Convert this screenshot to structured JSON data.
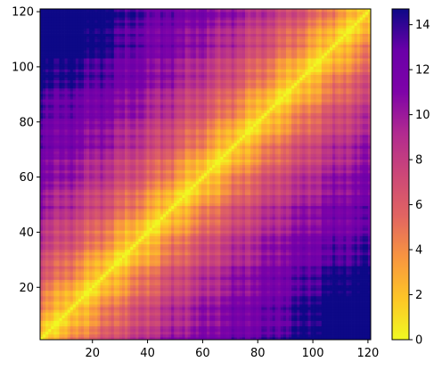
{
  "chart_data": {
    "type": "heatmap",
    "title": "",
    "xlabel": "",
    "ylabel": "",
    "n": 121,
    "xlim": [
      1,
      121
    ],
    "ylim": [
      1,
      121
    ],
    "x_ticks": [
      20,
      40,
      60,
      80,
      100,
      120
    ],
    "y_ticks": [
      20,
      40,
      60,
      80,
      100,
      120
    ],
    "x_tick_labels": [
      "20",
      "40",
      "60",
      "80",
      "100",
      "120"
    ],
    "y_tick_labels": [
      "20",
      "40",
      "60",
      "80",
      "100",
      "120"
    ],
    "symmetric": true,
    "diagonal_value": 0,
    "colormap": "plasma_r",
    "colorbar": {
      "range": [
        0,
        14.7
      ],
      "ticks": [
        0,
        2,
        4,
        6,
        8,
        10,
        12,
        14
      ],
      "tick_labels": [
        "0",
        "2",
        "4",
        "6",
        "8",
        "10",
        "12",
        "14"
      ],
      "stops": [
        "#f0f921",
        "#fdc527",
        "#f89540",
        "#e16462",
        "#cc4778",
        "#b12a90",
        "#7e03a8",
        "#6a00a8",
        "#0d0887"
      ]
    },
    "legend": "colorbar-right",
    "grid": false,
    "value_model": {
      "description": "pairwise distance matrix",
      "max_value": 14.7
    }
  }
}
